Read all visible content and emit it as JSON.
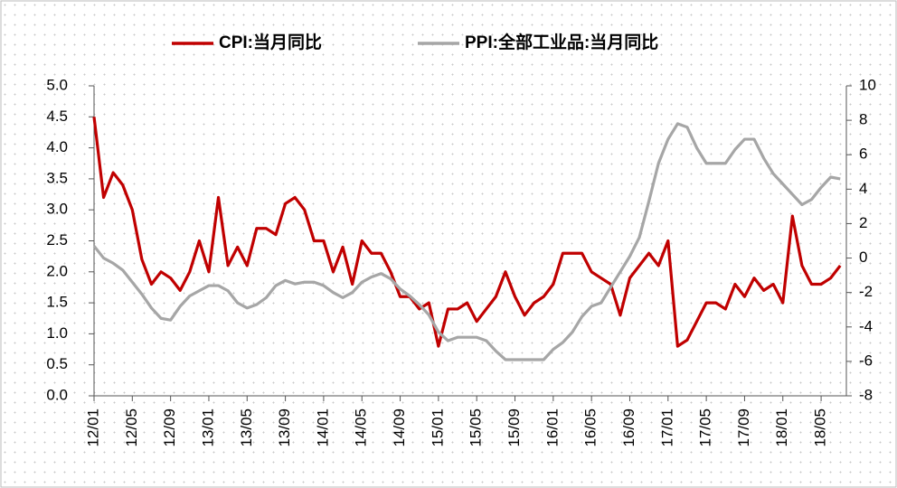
{
  "chart_data": {
    "type": "line",
    "categories": [
      "12/01",
      null,
      null,
      null,
      "12/05",
      null,
      null,
      null,
      "12/09",
      null,
      null,
      null,
      "13/01",
      null,
      null,
      null,
      "13/05",
      null,
      null,
      null,
      "13/09",
      null,
      null,
      null,
      "14/01",
      null,
      null,
      null,
      "14/05",
      null,
      null,
      null,
      "14/09",
      null,
      null,
      null,
      "15/01",
      null,
      null,
      null,
      "15/05",
      null,
      null,
      null,
      "15/09",
      null,
      null,
      null,
      "16/01",
      null,
      null,
      null,
      "16/05",
      null,
      null,
      null,
      "16/09",
      null,
      null,
      null,
      "17/01",
      null,
      null,
      null,
      "17/05",
      null,
      null,
      null,
      "17/09",
      null,
      null,
      null,
      "18/01",
      null,
      null,
      null,
      "18/05",
      null,
      null
    ],
    "series": [
      {
        "name": "CPI:当月同比",
        "color": "#c00000",
        "values": [
          4.5,
          3.2,
          3.6,
          3.4,
          3.0,
          2.2,
          1.8,
          2.0,
          1.9,
          1.7,
          2.0,
          2.5,
          2.0,
          3.2,
          2.1,
          2.4,
          2.1,
          2.7,
          2.7,
          2.6,
          3.1,
          3.2,
          3.0,
          2.5,
          2.5,
          2.0,
          2.4,
          1.8,
          2.5,
          2.3,
          2.3,
          2.0,
          1.6,
          1.6,
          1.4,
          1.5,
          0.8,
          1.4,
          1.4,
          1.5,
          1.2,
          1.4,
          1.6,
          2.0,
          1.6,
          1.3,
          1.5,
          1.6,
          1.8,
          2.3,
          2.3,
          2.3,
          2.0,
          1.9,
          1.8,
          1.3,
          1.9,
          2.1,
          2.3,
          2.1,
          2.5,
          0.8,
          0.9,
          1.2,
          1.5,
          1.5,
          1.4,
          1.8,
          1.6,
          1.9,
          1.7,
          1.8,
          1.5,
          2.9,
          2.1,
          1.8,
          1.8,
          1.9,
          2.1
        ]
      },
      {
        "name": "PPI:全部工业品:当月同比",
        "color": "#a6a6a6",
        "axis": "y2",
        "values": [
          0.7,
          0.0,
          -0.3,
          -0.7,
          -1.4,
          -2.1,
          -2.9,
          -3.5,
          -3.6,
          -2.8,
          -2.2,
          -1.9,
          -1.6,
          -1.6,
          -1.9,
          -2.6,
          -2.9,
          -2.7,
          -2.3,
          -1.6,
          -1.3,
          -1.5,
          -1.4,
          -1.4,
          -1.6,
          -2.0,
          -2.3,
          -2.0,
          -1.4,
          -1.1,
          -0.9,
          -1.2,
          -1.8,
          -2.2,
          -2.7,
          -3.3,
          -4.3,
          -4.8,
          -4.6,
          -4.6,
          -4.6,
          -4.8,
          -5.4,
          -5.9,
          -5.9,
          -5.9,
          -5.9,
          -5.9,
          -5.3,
          -4.9,
          -4.3,
          -3.4,
          -2.8,
          -2.6,
          -1.7,
          -0.8,
          0.1,
          1.2,
          3.3,
          5.5,
          6.9,
          7.8,
          7.6,
          6.4,
          5.5,
          5.5,
          5.5,
          6.3,
          6.9,
          6.9,
          5.8,
          4.9,
          4.3,
          3.7,
          3.1,
          3.4,
          4.1,
          4.7,
          4.6
        ]
      }
    ],
    "ylim": [
      0,
      5
    ],
    "yticks": [
      {
        "value": 0,
        "label": "0.0"
      },
      {
        "value": 0.5,
        "label": "0.5"
      },
      {
        "value": 1,
        "label": "1.0"
      },
      {
        "value": 1.5,
        "label": "1.5"
      },
      {
        "value": 2,
        "label": "2.0"
      },
      {
        "value": 2.5,
        "label": "2.5"
      },
      {
        "value": 3,
        "label": "3.0"
      },
      {
        "value": 3.5,
        "label": "3.5"
      },
      {
        "value": 4,
        "label": "4.0"
      },
      {
        "value": 4.5,
        "label": "4.5"
      },
      {
        "value": 5,
        "label": "5.0"
      }
    ],
    "y2lim": [
      -8,
      10
    ],
    "y2ticks": [
      -8,
      -6,
      -4,
      -2,
      0,
      2,
      4,
      6,
      8,
      10
    ],
    "legend": "top"
  }
}
